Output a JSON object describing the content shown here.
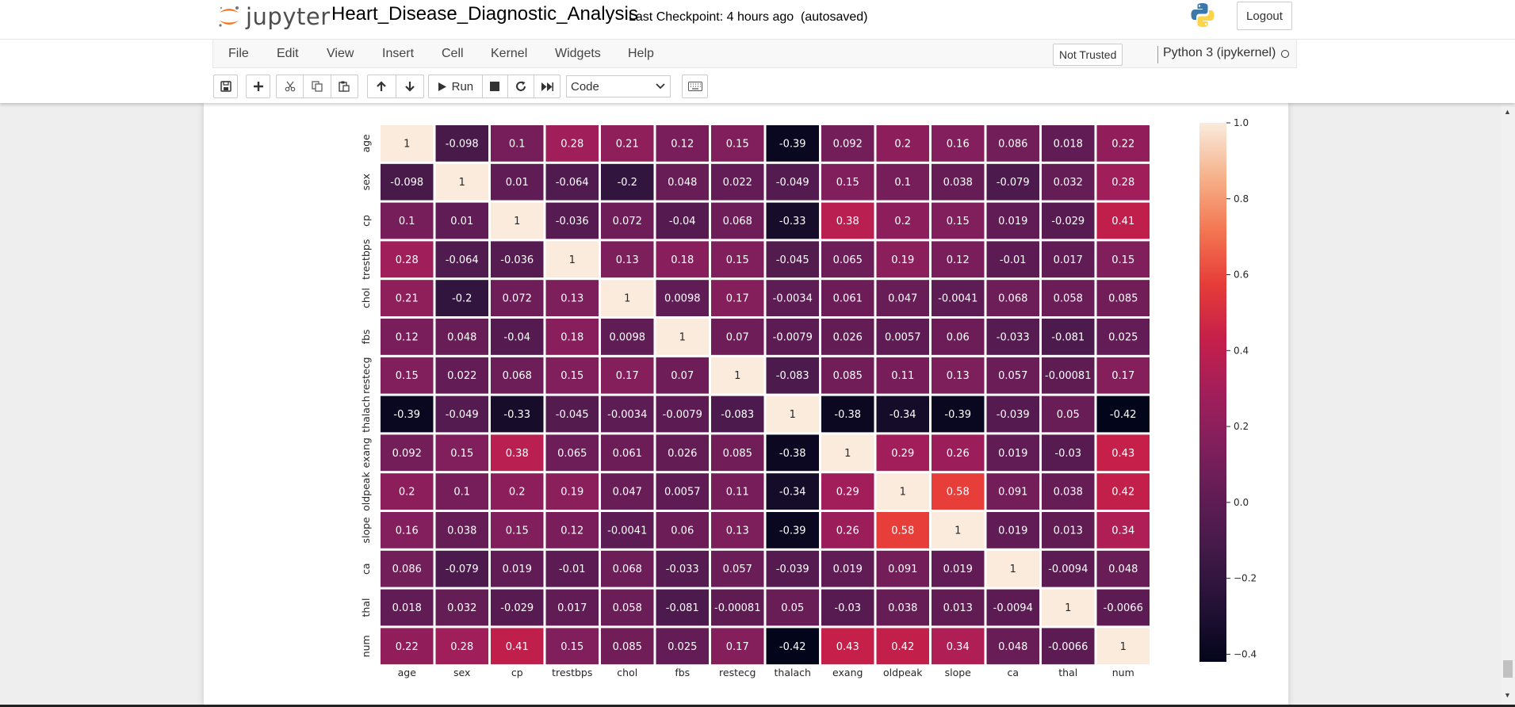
{
  "header": {
    "logo_text": "jupyter",
    "notebook_name": "Heart_Disease_Diagnostic_Analysis",
    "checkpoint": "Last Checkpoint: 4 hours ago",
    "autosave": "(autosaved)",
    "logout_label": "Logout"
  },
  "menubar": {
    "items": [
      "File",
      "Edit",
      "View",
      "Insert",
      "Cell",
      "Kernel",
      "Widgets",
      "Help"
    ],
    "not_trusted": "Not Trusted",
    "kernel_name": "Python 3 (ipykernel)"
  },
  "toolbar": {
    "run_label": "Run",
    "cell_type": "Code"
  },
  "colors": {
    "accent_orange": "#f37726",
    "heatmap_low": "#03051a",
    "heatmap_high": "#faebdd"
  },
  "chart_data": {
    "type": "heatmap",
    "title": "",
    "xlabel": "",
    "ylabel": "",
    "rows": [
      "age",
      "sex",
      "cp",
      "trestbps",
      "chol",
      "fbs",
      "restecg",
      "thalach",
      "exang",
      "oldpeak",
      "slope",
      "ca",
      "thal",
      "num"
    ],
    "columns": [
      "age",
      "sex",
      "cp",
      "trestbps",
      "chol",
      "fbs",
      "restecg",
      "thalach",
      "exang",
      "oldpeak",
      "slope",
      "ca",
      "thal",
      "num"
    ],
    "values": [
      [
        1,
        -0.098,
        0.1,
        0.28,
        0.21,
        0.12,
        0.15,
        -0.39,
        0.092,
        0.2,
        0.16,
        0.086,
        0.018,
        0.22
      ],
      [
        -0.098,
        1,
        0.01,
        -0.064,
        -0.2,
        0.048,
        0.022,
        -0.049,
        0.15,
        0.1,
        0.038,
        -0.079,
        0.032,
        0.28
      ],
      [
        0.1,
        0.01,
        1,
        -0.036,
        0.072,
        -0.04,
        0.068,
        -0.33,
        0.38,
        0.2,
        0.15,
        0.019,
        -0.029,
        0.41
      ],
      [
        0.28,
        -0.064,
        -0.036,
        1,
        0.13,
        0.18,
        0.15,
        -0.045,
        0.065,
        0.19,
        0.12,
        -0.01,
        0.017,
        0.15
      ],
      [
        0.21,
        -0.2,
        0.072,
        0.13,
        1,
        0.0098,
        0.17,
        -0.0034,
        0.061,
        0.047,
        -0.0041,
        0.068,
        0.058,
        0.085
      ],
      [
        0.12,
        0.048,
        -0.04,
        0.18,
        0.0098,
        1,
        0.07,
        -0.0079,
        0.026,
        0.0057,
        0.06,
        -0.033,
        -0.081,
        0.025
      ],
      [
        0.15,
        0.022,
        0.068,
        0.15,
        0.17,
        0.07,
        1,
        -0.083,
        0.085,
        0.11,
        0.13,
        0.057,
        -0.00081,
        0.17
      ],
      [
        -0.39,
        -0.049,
        -0.33,
        -0.045,
        -0.0034,
        -0.0079,
        -0.083,
        1,
        -0.38,
        -0.34,
        -0.39,
        -0.039,
        0.05,
        -0.42
      ],
      [
        0.092,
        0.15,
        0.38,
        0.065,
        0.061,
        0.026,
        0.085,
        -0.38,
        1,
        0.29,
        0.26,
        0.019,
        -0.03,
        0.43
      ],
      [
        0.2,
        0.1,
        0.2,
        0.19,
        0.047,
        0.0057,
        0.11,
        -0.34,
        0.29,
        1,
        0.58,
        0.091,
        0.038,
        0.42
      ],
      [
        0.16,
        0.038,
        0.15,
        0.12,
        -0.0041,
        0.06,
        0.13,
        -0.39,
        0.26,
        0.58,
        1,
        0.019,
        0.013,
        0.34
      ],
      [
        0.086,
        -0.079,
        0.019,
        -0.01,
        0.068,
        -0.033,
        0.057,
        -0.039,
        0.019,
        0.091,
        0.019,
        1,
        -0.0094,
        0.048
      ],
      [
        0.018,
        0.032,
        -0.029,
        0.017,
        0.058,
        -0.081,
        -0.00081,
        0.05,
        -0.03,
        0.038,
        0.013,
        -0.0094,
        1,
        -0.0066
      ],
      [
        0.22,
        0.28,
        0.41,
        0.15,
        0.085,
        0.025,
        0.17,
        -0.42,
        0.43,
        0.42,
        0.34,
        0.048,
        -0.0066,
        1
      ]
    ],
    "labels": [
      [
        "1",
        "-0.098",
        "0.1",
        "0.28",
        "0.21",
        "0.12",
        "0.15",
        "-0.39",
        "0.092",
        "0.2",
        "0.16",
        "0.086",
        "0.018",
        "0.22"
      ],
      [
        "-0.098",
        "1",
        "0.01",
        "-0.064",
        "-0.2",
        "0.048",
        "0.022",
        "-0.049",
        "0.15",
        "0.1",
        "0.038",
        "-0.079",
        "0.032",
        "0.28"
      ],
      [
        "0.1",
        "0.01",
        "1",
        "-0.036",
        "0.072",
        "-0.04",
        "0.068",
        "-0.33",
        "0.38",
        "0.2",
        "0.15",
        "0.019",
        "-0.029",
        "0.41"
      ],
      [
        "0.28",
        "-0.064",
        "-0.036",
        "1",
        "0.13",
        "0.18",
        "0.15",
        "-0.045",
        "0.065",
        "0.19",
        "0.12",
        "-0.01",
        "0.017",
        "0.15"
      ],
      [
        "0.21",
        "-0.2",
        "0.072",
        "0.13",
        "1",
        "0.0098",
        "0.17",
        "-0.0034",
        "0.061",
        "0.047",
        "-0.0041",
        "0.068",
        "0.058",
        "0.085"
      ],
      [
        "0.12",
        "0.048",
        "-0.04",
        "0.18",
        "0.0098",
        "1",
        "0.07",
        "-0.0079",
        "0.026",
        "0.0057",
        "0.06",
        "-0.033",
        "-0.081",
        "0.025"
      ],
      [
        "0.15",
        "0.022",
        "0.068",
        "0.15",
        "0.17",
        "0.07",
        "1",
        "-0.083",
        "0.085",
        "0.11",
        "0.13",
        "0.057",
        "-0.00081",
        "0.17"
      ],
      [
        "-0.39",
        "-0.049",
        "-0.33",
        "-0.045",
        "-0.0034",
        "-0.0079",
        "-0.083",
        "1",
        "-0.38",
        "-0.34",
        "-0.39",
        "-0.039",
        "0.05",
        "-0.42"
      ],
      [
        "0.092",
        "0.15",
        "0.38",
        "0.065",
        "0.061",
        "0.026",
        "0.085",
        "-0.38",
        "1",
        "0.29",
        "0.26",
        "0.019",
        "-0.03",
        "0.43"
      ],
      [
        "0.2",
        "0.1",
        "0.2",
        "0.19",
        "0.047",
        "0.0057",
        "0.11",
        "-0.34",
        "0.29",
        "1",
        "0.58",
        "0.091",
        "0.038",
        "0.42"
      ],
      [
        "0.16",
        "0.038",
        "0.15",
        "0.12",
        "-0.0041",
        "0.06",
        "0.13",
        "-0.39",
        "0.26",
        "0.58",
        "1",
        "0.019",
        "0.013",
        "0.34"
      ],
      [
        "0.086",
        "-0.079",
        "0.019",
        "-0.01",
        "0.068",
        "-0.033",
        "0.057",
        "-0.039",
        "0.019",
        "0.091",
        "0.019",
        "1",
        "-0.0094",
        "0.048"
      ],
      [
        "0.018",
        "0.032",
        "-0.029",
        "0.017",
        "0.058",
        "-0.081",
        "-0.00081",
        "0.05",
        "-0.03",
        "0.038",
        "0.013",
        "-0.0094",
        "1",
        "-0.0066"
      ],
      [
        "0.22",
        "0.28",
        "0.41",
        "0.15",
        "0.085",
        "0.025",
        "0.17",
        "-0.42",
        "0.43",
        "0.42",
        "0.34",
        "0.048",
        "-0.0066",
        "1"
      ]
    ],
    "colorbar": {
      "range": [
        -0.42,
        1.0
      ],
      "ticks": [
        -0.4,
        -0.2,
        0.0,
        0.2,
        0.4,
        0.6,
        0.8,
        1.0
      ],
      "tick_labels": [
        "−0.4",
        "−0.2",
        "0.0",
        "0.2",
        "0.4",
        "0.6",
        "0.8",
        "1.0"
      ]
    },
    "colormap": "rocket",
    "cell_border_color": "#ffffff",
    "grid": false
  }
}
